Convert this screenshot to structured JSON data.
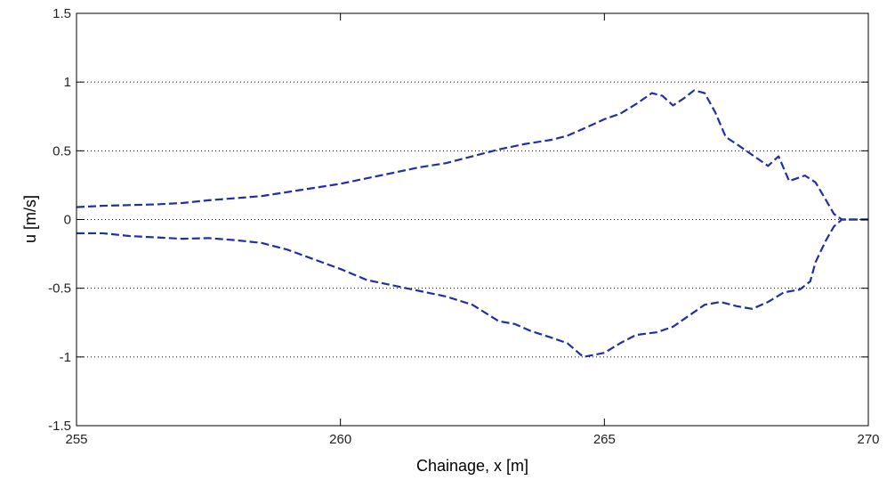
{
  "chart_data": {
    "type": "line",
    "title": "",
    "xlabel": "Chainage, x [m]",
    "ylabel": "u [m/s]",
    "xlim": [
      255,
      270
    ],
    "ylim": [
      -1.5,
      1.5
    ],
    "x_ticks": [
      255,
      260,
      265,
      270
    ],
    "y_ticks": [
      -1.5,
      -1,
      -0.5,
      0,
      0.5,
      1,
      1.5
    ],
    "x_tick_labels": [
      "255",
      "260",
      "265",
      "270"
    ],
    "y_tick_labels": [
      "-1.5",
      "-1",
      "-0.5",
      "0",
      "0.5",
      "1",
      "1.5"
    ],
    "grid": "y-dotted",
    "legend": "none",
    "line_color": "#1f2fa8",
    "series": [
      {
        "style": "dashed",
        "x": [
          255,
          255.5,
          256,
          256.5,
          257,
          257.5,
          258,
          258.5,
          259,
          259.5,
          260,
          260.5,
          261,
          261.5,
          262,
          262.5,
          263,
          263.5,
          264,
          264.3,
          264.6,
          265,
          265.3,
          265.6,
          265.9,
          266.1,
          266.3,
          266.5,
          266.7,
          266.9,
          267.1,
          267.3,
          267.5,
          267.8,
          268.1,
          268.3,
          268.5,
          268.8,
          269,
          269.2,
          269.35,
          269.5,
          270
        ],
        "y": [
          0.09,
          0.1,
          0.105,
          0.11,
          0.12,
          0.14,
          0.155,
          0.17,
          0.2,
          0.23,
          0.26,
          0.3,
          0.34,
          0.38,
          0.41,
          0.46,
          0.51,
          0.55,
          0.58,
          0.61,
          0.66,
          0.73,
          0.77,
          0.84,
          0.92,
          0.9,
          0.83,
          0.88,
          0.94,
          0.92,
          0.78,
          0.6,
          0.55,
          0.47,
          0.39,
          0.46,
          0.28,
          0.32,
          0.27,
          0.14,
          0.04,
          0.0,
          0.0
        ]
      },
      {
        "style": "dashed",
        "x": [
          255,
          255.5,
          256,
          256.5,
          257,
          257.5,
          258,
          258.5,
          259,
          259.5,
          260,
          260.5,
          261,
          261.5,
          262,
          262.5,
          263,
          263.3,
          263.6,
          264,
          264.3,
          264.6,
          265,
          265.3,
          265.6,
          266,
          266.3,
          266.6,
          266.9,
          267.2,
          267.5,
          267.8,
          268.1,
          268.4,
          268.7,
          268.9,
          269,
          269.2,
          269.35,
          269.5,
          270
        ],
        "y": [
          -0.1,
          -0.1,
          -0.12,
          -0.13,
          -0.14,
          -0.135,
          -0.15,
          -0.17,
          -0.22,
          -0.29,
          -0.36,
          -0.44,
          -0.48,
          -0.52,
          -0.56,
          -0.62,
          -0.74,
          -0.76,
          -0.81,
          -0.86,
          -0.9,
          -1.0,
          -0.97,
          -0.9,
          -0.84,
          -0.82,
          -0.78,
          -0.7,
          -0.62,
          -0.6,
          -0.63,
          -0.65,
          -0.6,
          -0.53,
          -0.51,
          -0.45,
          -0.31,
          -0.15,
          -0.05,
          0.0,
          0.0
        ]
      }
    ]
  }
}
